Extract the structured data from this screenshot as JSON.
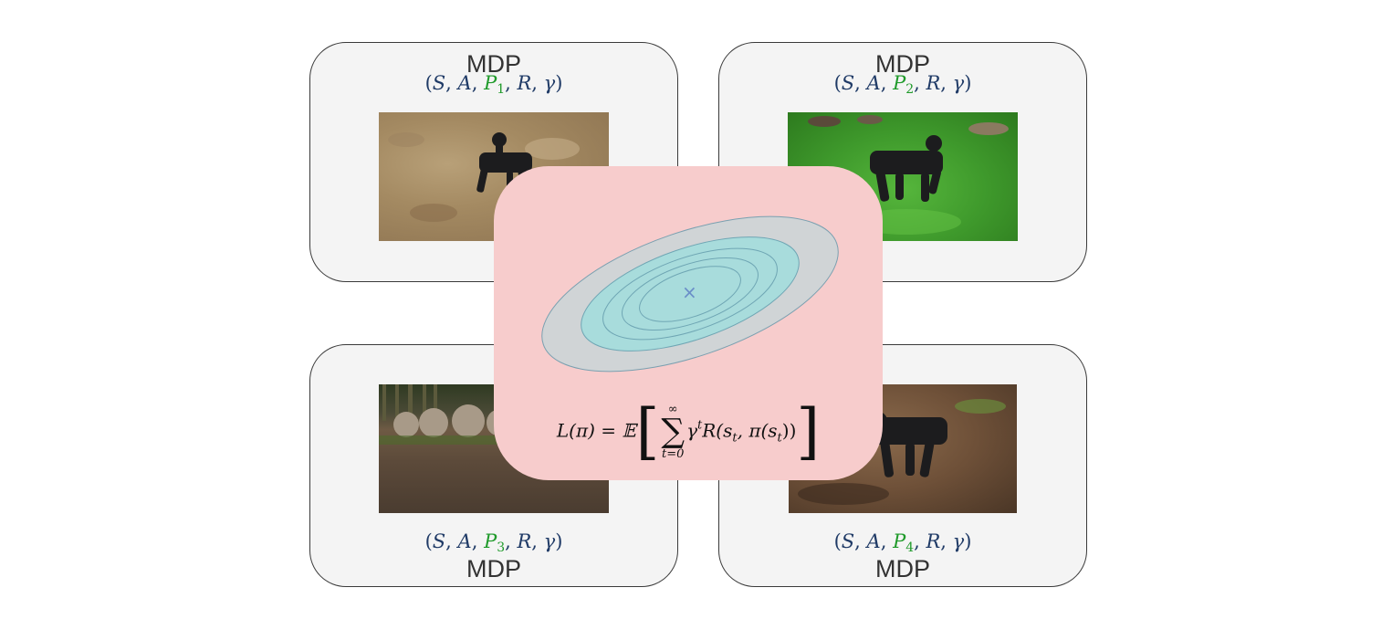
{
  "panels": [
    {
      "title": "MDP",
      "tuple": {
        "open": "(",
        "s": "S",
        "a": "A",
        "p": "P",
        "p_sub": "1",
        "r": "R",
        "g": "γ",
        "close": ")",
        "sep": ", "
      },
      "photo_icon": "robot-dog-on-sand-photo"
    },
    {
      "title": "MDP",
      "tuple": {
        "open": "(",
        "s": "S",
        "a": "A",
        "p": "P",
        "p_sub": "2",
        "r": "R",
        "g": "γ",
        "close": ")",
        "sep": ", "
      },
      "photo_icon": "robot-dog-on-grass-photo"
    },
    {
      "title": "MDP",
      "tuple": {
        "open": "(",
        "s": "S",
        "a": "A",
        "p": "P",
        "p_sub": "3",
        "r": "R",
        "g": "γ",
        "close": ")",
        "sep": ", "
      },
      "photo_icon": "robot-dog-on-dirt-photo"
    },
    {
      "title": "MDP",
      "tuple": {
        "open": "(",
        "s": "S",
        "a": "A",
        "p": "P",
        "p_sub": "4",
        "r": "R",
        "g": "γ",
        "close": ")",
        "sep": ", "
      },
      "photo_icon": "robot-dog-on-bark-photo"
    }
  ],
  "objective": {
    "lhs": "L(π) = 𝔼",
    "sum_upper": "∞",
    "sum_symbol": "∑",
    "sum_lower": "t=0",
    "gamma": "γ",
    "gamma_power": "t",
    "reward_open": "R(s",
    "state_sub": "t",
    "policy_mid": ", π(s",
    "policy_sub": "t",
    "reward_close": "))",
    "optimum_marker": "×",
    "contour_icon": "loss-contour-ellipses"
  },
  "colors": {
    "panel_bg": "#f4f4f4",
    "objective_bg": "#f7cccc",
    "tuple_text": "#1f3a66",
    "transition_highlight": "#1f9a2a",
    "outer_ellipse": "#d0d4d6",
    "inner_ellipses": "#a8dcdc",
    "contour_stroke": "#6fa6b4"
  }
}
